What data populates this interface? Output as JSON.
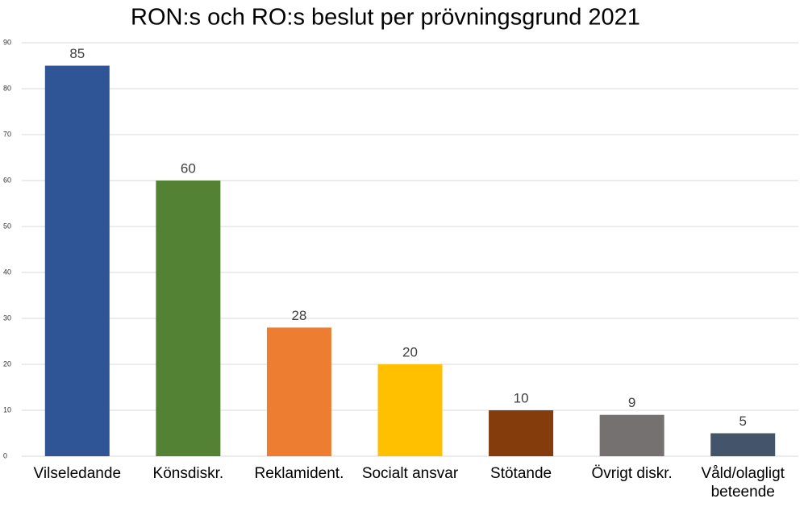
{
  "chart_data": {
    "type": "bar",
    "title": "RON:s och RO:s beslut per prövningsgrund 2021",
    "categories": [
      "Vilseledande",
      "Könsdiskr.",
      "Reklamident.",
      "Socialt ansvar",
      "Stötande",
      "Övrigt diskr.",
      "Våld/olagligt beteende"
    ],
    "values": [
      85,
      60,
      28,
      20,
      10,
      9,
      5
    ],
    "colors": [
      "#2f5597",
      "#548235",
      "#ed7d31",
      "#ffc000",
      "#843c0c",
      "#767171",
      "#44546a"
    ],
    "ylim": [
      0,
      90
    ],
    "yticks": [
      0,
      10,
      20,
      30,
      40,
      50,
      60,
      70,
      80,
      90
    ],
    "grid": true
  }
}
